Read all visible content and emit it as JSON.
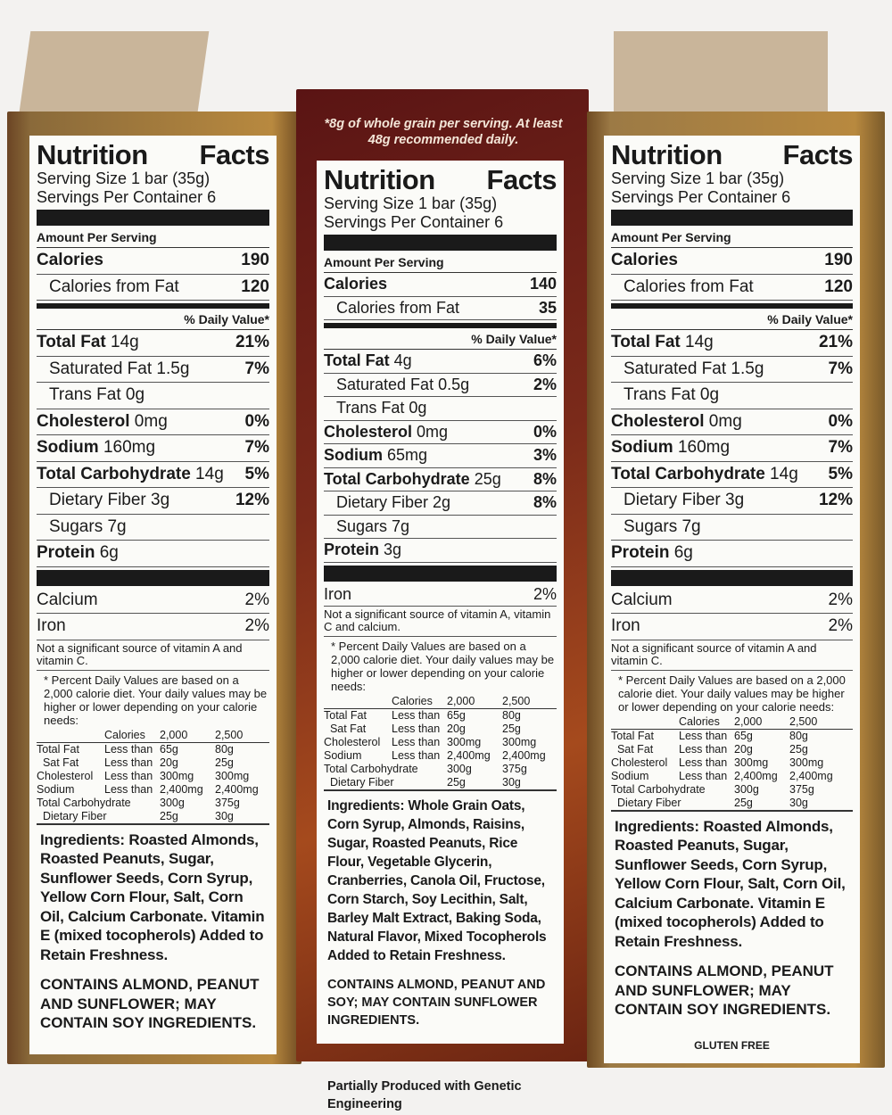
{
  "labels": [
    {
      "id": "left",
      "top_note": null,
      "title": [
        "Nutrition",
        "Facts"
      ],
      "serving_size": "Serving Size 1 bar (35g)",
      "servings": "Servings Per Container 6",
      "amount_per_serving": "Amount Per Serving",
      "pre_rows": [
        {
          "b": "Calories",
          "n": "",
          "v": "190",
          "ind": false
        },
        {
          "b": "",
          "n": "Calories from Fat",
          "v": "120",
          "ind": true
        }
      ],
      "dv_header": "% Daily Value*",
      "rows": [
        {
          "b": "Total Fat",
          "n": " 14g",
          "v": "21%",
          "ind": false
        },
        {
          "b": "",
          "n": "Saturated Fat 1.5g",
          "v": "7%",
          "ind": true
        },
        {
          "b": "",
          "n": "Trans Fat 0g",
          "v": "",
          "ind": true
        },
        {
          "b": "Cholesterol",
          "n": " 0mg",
          "v": "0%",
          "ind": false
        },
        {
          "b": "Sodium",
          "n": " 160mg",
          "v": "7%",
          "ind": false
        },
        {
          "b": "Total Carbohydrate",
          "n": " 14g",
          "v": "5%",
          "ind": false
        },
        {
          "b": "",
          "n": "Dietary Fiber 3g",
          "v": "12%",
          "ind": true
        },
        {
          "b": "",
          "n": "Sugars 7g",
          "v": "",
          "ind": true
        },
        {
          "b": "Protein",
          "n": " 6g",
          "v": "",
          "ind": false
        }
      ],
      "vitamins": [
        {
          "n": "Calcium",
          "v": "2%"
        },
        {
          "n": "Iron",
          "v": "2%"
        }
      ],
      "note": "Not a significant source of vitamin A and vitamin C.",
      "footnote": "* Percent Daily Values are based on a 2,000 calorie diet. Your daily values may be higher or lower depending on your calorie needs:",
      "ingredients": "Ingredients: Roasted Almonds, Roasted Peanuts, Sugar, Sunflower Seeds, Corn Syrup, Yellow Corn Flour, Salt, Corn Oil, Calcium Carbonate. Vitamin E (mixed tocopherols) Added to Retain Freshness.",
      "contains": "CONTAINS ALMOND, PEANUT AND SUNFLOWER; MAY CONTAIN SOY INGREDIENTS.",
      "extra": null,
      "gluten_free": null
    },
    {
      "id": "mid",
      "top_note": "*8g of whole grain per serving. At least 48g recommended daily.",
      "title": [
        "Nutrition",
        "Facts"
      ],
      "serving_size": "Serving Size 1 bar (35g)",
      "servings": "Servings Per Container 6",
      "amount_per_serving": "Amount Per Serving",
      "pre_rows": [
        {
          "b": "Calories",
          "n": "",
          "v": "140",
          "ind": false
        },
        {
          "b": "",
          "n": "Calories from Fat",
          "v": "35",
          "ind": true
        }
      ],
      "dv_header": "% Daily Value*",
      "rows": [
        {
          "b": "Total Fat",
          "n": " 4g",
          "v": "6%",
          "ind": false
        },
        {
          "b": "",
          "n": "Saturated Fat 0.5g",
          "v": "2%",
          "ind": true
        },
        {
          "b": "",
          "n": "Trans Fat 0g",
          "v": "",
          "ind": true
        },
        {
          "b": "Cholesterol",
          "n": " 0mg",
          "v": "0%",
          "ind": false
        },
        {
          "b": "Sodium",
          "n": " 65mg",
          "v": "3%",
          "ind": false
        },
        {
          "b": "Total Carbohydrate",
          "n": " 25g",
          "v": "8%",
          "ind": false
        },
        {
          "b": "",
          "n": "Dietary Fiber 2g",
          "v": "8%",
          "ind": true
        },
        {
          "b": "",
          "n": "Sugars 7g",
          "v": "",
          "ind": true
        },
        {
          "b": "Protein",
          "n": " 3g",
          "v": "",
          "ind": false
        }
      ],
      "vitamins": [
        {
          "n": "Iron",
          "v": "2%"
        }
      ],
      "note": "Not a significant source of vitamin A, vitamin C and calcium.",
      "footnote": "* Percent Daily Values are based on a 2,000 calorie diet. Your daily values may be higher or lower depending on your calorie needs:",
      "ingredients": "Ingredients: Whole Grain Oats, Corn Syrup, Almonds, Raisins, Sugar, Roasted Peanuts, Rice Flour, Vegetable Glycerin, Cranberries, Canola Oil, Fructose, Corn Starch, Soy Lecithin, Salt, Barley Malt Extract, Baking Soda, Natural Flavor, Mixed Tocopherols Added to Retain Freshness.",
      "contains": "CONTAINS ALMOND, PEANUT AND SOY; MAY CONTAIN SUNFLOWER INGREDIENTS.",
      "extra": "Partially Produced with Genetic Engineering",
      "gluten_free": null
    },
    {
      "id": "right",
      "top_note": null,
      "title": [
        "Nutrition",
        "Facts"
      ],
      "serving_size": "Serving Size 1 bar (35g)",
      "servings": "Servings Per Container 6",
      "amount_per_serving": "Amount Per Serving",
      "pre_rows": [
        {
          "b": "Calories",
          "n": "",
          "v": "190",
          "ind": false
        },
        {
          "b": "",
          "n": "Calories from Fat",
          "v": "120",
          "ind": true
        }
      ],
      "dv_header": "% Daily Value*",
      "rows": [
        {
          "b": "Total Fat",
          "n": " 14g",
          "v": "21%",
          "ind": false
        },
        {
          "b": "",
          "n": "Saturated Fat 1.5g",
          "v": "7%",
          "ind": true
        },
        {
          "b": "",
          "n": "Trans Fat 0g",
          "v": "",
          "ind": true
        },
        {
          "b": "Cholesterol",
          "n": " 0mg",
          "v": "0%",
          "ind": false
        },
        {
          "b": "Sodium",
          "n": " 160mg",
          "v": "7%",
          "ind": false
        },
        {
          "b": "Total Carbohydrate",
          "n": " 14g",
          "v": "5%",
          "ind": false
        },
        {
          "b": "",
          "n": "Dietary Fiber 3g",
          "v": "12%",
          "ind": true
        },
        {
          "b": "",
          "n": "Sugars 7g",
          "v": "",
          "ind": true
        },
        {
          "b": "Protein",
          "n": " 6g",
          "v": "",
          "ind": false
        }
      ],
      "vitamins": [
        {
          "n": "Calcium",
          "v": "2%"
        },
        {
          "n": "Iron",
          "v": "2%"
        }
      ],
      "note": "Not a significant source of vitamin A and vitamin C.",
      "footnote": "* Percent Daily Values are based on a 2,000 calorie diet. Your daily values may be higher or lower depending on your calorie needs:",
      "ingredients": "Ingredients: Roasted Almonds, Roasted Peanuts, Sugar, Sunflower Seeds, Corn Syrup, Yellow Corn Flour, Salt, Corn Oil, Calcium Carbonate. Vitamin E (mixed tocopherols) Added to Retain Freshness.",
      "contains": "CONTAINS ALMOND, PEANUT AND SUNFLOWER; MAY CONTAIN SOY INGREDIENTS.",
      "extra": null,
      "gluten_free": "GLUTEN FREE"
    }
  ],
  "dv_table": {
    "header": [
      "",
      "Calories",
      "2,000",
      "2,500"
    ],
    "rows": [
      [
        "Total Fat",
        "Less than",
        "65g",
        "80g"
      ],
      [
        "  Sat Fat",
        "Less than",
        "20g",
        "25g"
      ],
      [
        "Cholesterol",
        "Less than",
        "300mg",
        "300mg"
      ],
      [
        "Sodium",
        "Less than",
        "2,400mg",
        "2,400mg"
      ],
      [
        "Total Carbohydrate",
        "",
        "300g",
        "375g"
      ],
      [
        "  Dietary Fiber",
        "",
        "25g",
        "30g"
      ]
    ]
  }
}
